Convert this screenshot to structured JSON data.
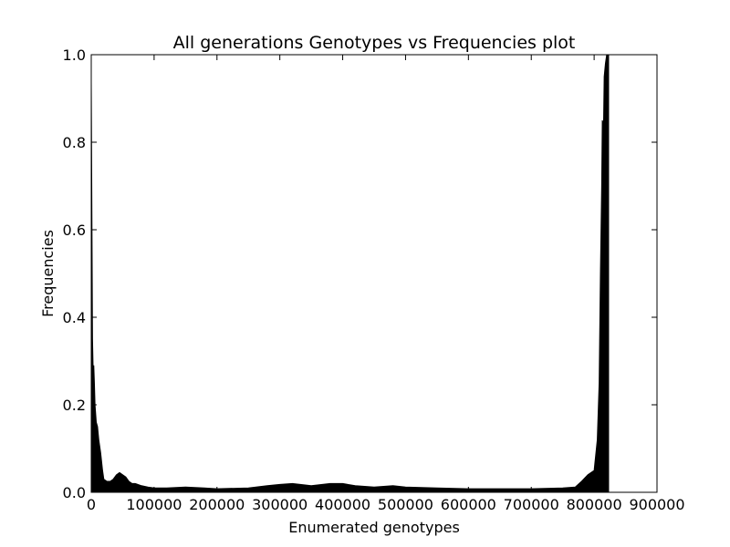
{
  "chart_data": {
    "type": "area",
    "title": "All generations Genotypes vs Frequencies plot",
    "xlabel": "Enumerated genotypes",
    "ylabel": "Frequencies",
    "xlim": [
      0,
      900000
    ],
    "ylim": [
      0,
      1.0
    ],
    "xticks": [
      0,
      100000,
      200000,
      300000,
      400000,
      500000,
      600000,
      700000,
      800000,
      900000
    ],
    "xtick_labels": [
      "0",
      "100000",
      "200000",
      "300000",
      "400000",
      "500000",
      "600000",
      "700000",
      "800000",
      "900000"
    ],
    "yticks": [
      0,
      0.2,
      0.4,
      0.6,
      0.8,
      1.0
    ],
    "ytick_labels": [
      "0.0",
      "0.2",
      "0.4",
      "0.6",
      "0.8",
      "1.0"
    ],
    "grid": false,
    "fill_color": "#000000",
    "series": [
      {
        "x": [
          0,
          1000,
          2000,
          3000,
          4000,
          5000,
          6000,
          8000,
          10000,
          12000,
          15000,
          18000,
          20000,
          25000,
          30000,
          35000,
          40000,
          45000,
          50000,
          55000,
          60000,
          65000,
          70000,
          80000,
          90000,
          100000,
          120000,
          150000,
          180000,
          200000,
          250000,
          280000,
          300000,
          320000,
          350000,
          380000,
          400000,
          420000,
          450000,
          480000,
          500000,
          550000,
          600000,
          650000,
          700000,
          750000,
          770000,
          780000,
          790000,
          800000,
          805000,
          808000,
          810000,
          812000,
          813000,
          815000,
          816000,
          818000,
          820000,
          822000,
          823000
        ],
        "y": [
          0.94,
          0.64,
          0.35,
          0.28,
          0.29,
          0.25,
          0.2,
          0.16,
          0.15,
          0.12,
          0.09,
          0.05,
          0.03,
          0.025,
          0.025,
          0.03,
          0.04,
          0.045,
          0.04,
          0.035,
          0.025,
          0.02,
          0.02,
          0.015,
          0.012,
          0.01,
          0.01,
          0.012,
          0.01,
          0.008,
          0.01,
          0.015,
          0.018,
          0.02,
          0.015,
          0.02,
          0.02,
          0.015,
          0.012,
          0.015,
          0.012,
          0.01,
          0.008,
          0.008,
          0.008,
          0.01,
          0.012,
          0.025,
          0.04,
          0.05,
          0.12,
          0.25,
          0.5,
          0.7,
          0.85,
          0.84,
          0.95,
          0.98,
          1.0,
          1.0,
          1.0
        ]
      }
    ]
  }
}
